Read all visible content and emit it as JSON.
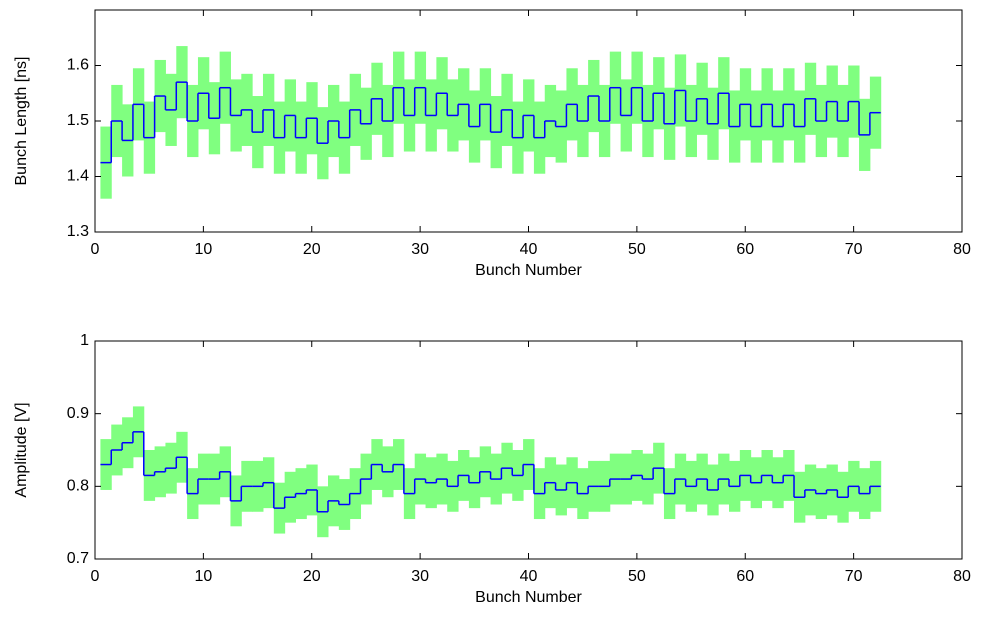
{
  "chart_data": [
    {
      "type": "stairs",
      "xlabel": "Bunch Number",
      "ylabel": "Bunch Length [ns]",
      "xlim": [
        0,
        80
      ],
      "xticks": [
        0,
        10,
        20,
        30,
        40,
        50,
        60,
        70,
        80
      ],
      "ylim": [
        1.3,
        1.7
      ],
      "yticks": [
        1.3,
        1.4,
        1.5,
        1.6
      ],
      "color": "#0000ff",
      "error_color": "#80ff80",
      "error": 0.065,
      "x": [
        1,
        2,
        3,
        4,
        5,
        6,
        7,
        8,
        9,
        10,
        11,
        12,
        13,
        14,
        15,
        16,
        17,
        18,
        19,
        20,
        21,
        22,
        23,
        24,
        25,
        26,
        27,
        28,
        29,
        30,
        31,
        32,
        33,
        34,
        35,
        36,
        37,
        38,
        39,
        40,
        41,
        42,
        43,
        44,
        45,
        46,
        47,
        48,
        49,
        50,
        51,
        52,
        53,
        54,
        55,
        56,
        57,
        58,
        59,
        60,
        61,
        62,
        63,
        64,
        65,
        66,
        67,
        68,
        69,
        70,
        71,
        72
      ],
      "values": [
        1.425,
        1.5,
        1.465,
        1.53,
        1.47,
        1.545,
        1.52,
        1.57,
        1.5,
        1.55,
        1.505,
        1.56,
        1.51,
        1.52,
        1.48,
        1.52,
        1.47,
        1.51,
        1.47,
        1.505,
        1.46,
        1.5,
        1.47,
        1.52,
        1.495,
        1.54,
        1.5,
        1.56,
        1.51,
        1.56,
        1.51,
        1.55,
        1.51,
        1.53,
        1.49,
        1.53,
        1.48,
        1.52,
        1.47,
        1.51,
        1.47,
        1.5,
        1.49,
        1.53,
        1.5,
        1.545,
        1.5,
        1.56,
        1.51,
        1.56,
        1.5,
        1.55,
        1.495,
        1.555,
        1.5,
        1.54,
        1.495,
        1.55,
        1.49,
        1.53,
        1.49,
        1.53,
        1.49,
        1.53,
        1.49,
        1.54,
        1.5,
        1.535,
        1.5,
        1.535,
        1.475,
        1.515
      ]
    },
    {
      "type": "stairs",
      "xlabel": "Bunch Number",
      "ylabel": "Amplitude [V]",
      "xlim": [
        0,
        80
      ],
      "xticks": [
        0,
        10,
        20,
        30,
        40,
        50,
        60,
        70,
        80
      ],
      "ylim": [
        0.7,
        1
      ],
      "yticks": [
        0.7,
        0.8,
        0.9,
        1
      ],
      "color": "#0000ff",
      "error_color": "#80ff80",
      "error": 0.035,
      "x": [
        1,
        2,
        3,
        4,
        5,
        6,
        7,
        8,
        9,
        10,
        11,
        12,
        13,
        14,
        15,
        16,
        17,
        18,
        19,
        20,
        21,
        22,
        23,
        24,
        25,
        26,
        27,
        28,
        29,
        30,
        31,
        32,
        33,
        34,
        35,
        36,
        37,
        38,
        39,
        40,
        41,
        42,
        43,
        44,
        45,
        46,
        47,
        48,
        49,
        50,
        51,
        52,
        53,
        54,
        55,
        56,
        57,
        58,
        59,
        60,
        61,
        62,
        63,
        64,
        65,
        66,
        67,
        68,
        69,
        70,
        71,
        72
      ],
      "values": [
        0.83,
        0.85,
        0.86,
        0.875,
        0.815,
        0.82,
        0.825,
        0.84,
        0.79,
        0.81,
        0.81,
        0.82,
        0.78,
        0.8,
        0.8,
        0.805,
        0.77,
        0.785,
        0.79,
        0.795,
        0.765,
        0.78,
        0.775,
        0.79,
        0.81,
        0.83,
        0.82,
        0.83,
        0.79,
        0.81,
        0.805,
        0.81,
        0.8,
        0.815,
        0.805,
        0.82,
        0.81,
        0.825,
        0.815,
        0.83,
        0.79,
        0.805,
        0.795,
        0.805,
        0.79,
        0.8,
        0.8,
        0.81,
        0.81,
        0.815,
        0.81,
        0.825,
        0.79,
        0.81,
        0.8,
        0.81,
        0.795,
        0.81,
        0.8,
        0.815,
        0.805,
        0.815,
        0.805,
        0.815,
        0.785,
        0.795,
        0.79,
        0.795,
        0.785,
        0.8,
        0.79,
        0.8
      ]
    }
  ]
}
